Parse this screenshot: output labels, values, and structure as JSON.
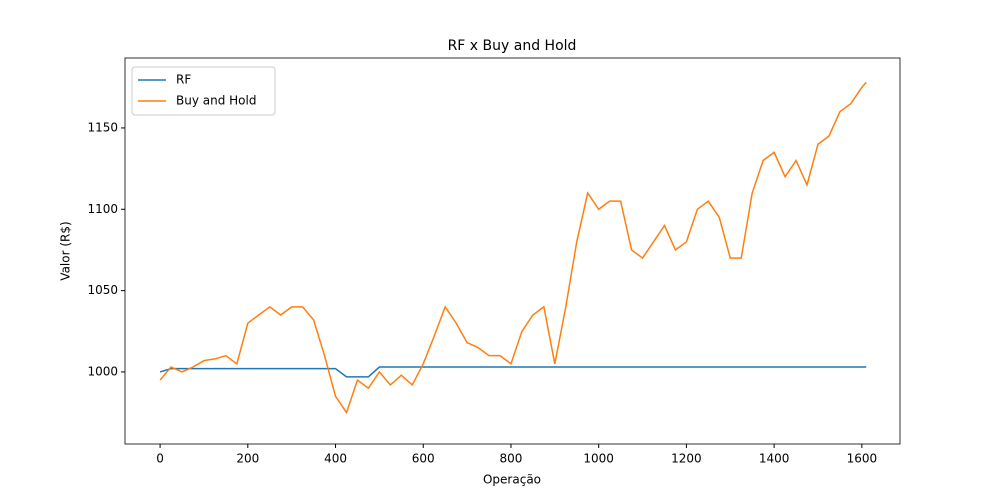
{
  "chart_data": {
    "type": "line",
    "title": "RF x Buy and Hold",
    "x_label": "Operação",
    "y_label": "Valor (R$)",
    "x": [
      0,
      25,
      50,
      75,
      100,
      125,
      150,
      175,
      200,
      225,
      250,
      275,
      300,
      325,
      350,
      375,
      400,
      425,
      450,
      475,
      500,
      525,
      550,
      575,
      600,
      625,
      650,
      675,
      700,
      725,
      750,
      775,
      800,
      825,
      850,
      875,
      900,
      925,
      950,
      975,
      1000,
      1025,
      1050,
      1075,
      1100,
      1125,
      1150,
      1175,
      1200,
      1225,
      1250,
      1275,
      1300,
      1325,
      1350,
      1375,
      1400,
      1425,
      1450,
      1475,
      1500,
      1525,
      1550,
      1575,
      1600,
      1610
    ],
    "series": [
      {
        "name": "RF",
        "color": "#1f77b4",
        "values": [
          1000,
          1002,
          1002,
          1002,
          1002,
          1002,
          1002,
          1002,
          1002,
          1002,
          1002,
          1002,
          1002,
          1002,
          1002,
          1002,
          1002,
          997,
          997,
          997,
          1003,
          1003,
          1003,
          1003,
          1003,
          1003,
          1003,
          1003,
          1003,
          1003,
          1003,
          1003,
          1003,
          1003,
          1003,
          1003,
          1003,
          1003,
          1003,
          1003,
          1003,
          1003,
          1003,
          1003,
          1003,
          1003,
          1003,
          1003,
          1003,
          1003,
          1003,
          1003,
          1003,
          1003,
          1003,
          1003,
          1003,
          1003,
          1003,
          1003,
          1003,
          1003,
          1003,
          1003,
          1003,
          1003
        ]
      },
      {
        "name": "Buy and Hold",
        "color": "#ff7f0e",
        "values": [
          995,
          1003,
          1000,
          1003,
          1007,
          1008,
          1010,
          1005,
          1030,
          1035,
          1040,
          1035,
          1040,
          1040,
          1032,
          1010,
          985,
          975,
          995,
          990,
          1000,
          992,
          998,
          992,
          1005,
          1022,
          1040,
          1030,
          1018,
          1015,
          1010,
          1010,
          1005,
          1025,
          1035,
          1040,
          1005,
          1040,
          1080,
          1110,
          1100,
          1105,
          1105,
          1075,
          1070,
          1080,
          1090,
          1075,
          1080,
          1100,
          1105,
          1095,
          1070,
          1070,
          1110,
          1130,
          1135,
          1120,
          1130,
          1115,
          1140,
          1145,
          1160,
          1165,
          1175,
          1178
        ]
      }
    ],
    "xlim": [
      -80,
      1687
    ],
    "ylim": [
      955.7,
      1193
    ],
    "xticks": [
      0,
      200,
      400,
      600,
      800,
      1000,
      1200,
      1400,
      1600
    ],
    "yticks": [
      1000,
      1050,
      1100,
      1150
    ],
    "legend": "upper left",
    "grid": false
  }
}
